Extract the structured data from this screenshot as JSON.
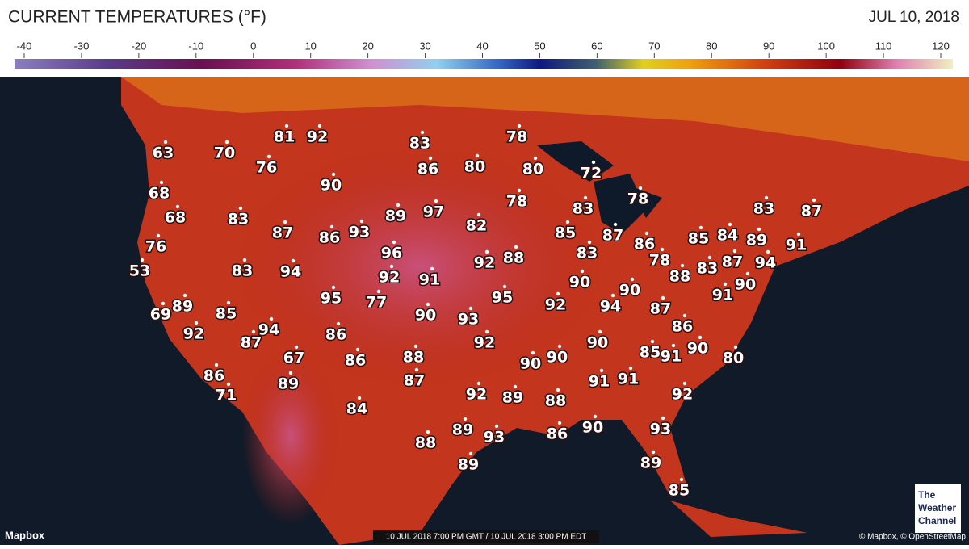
{
  "header": {
    "title": "CURRENT TEMPERATURES (°F)",
    "date": "JUL 10, 2018"
  },
  "legend": {
    "ticks": [
      -40,
      -30,
      -20,
      -10,
      0,
      10,
      20,
      30,
      40,
      50,
      60,
      70,
      80,
      90,
      100,
      110,
      120
    ]
  },
  "temperatures": [
    63,
    70,
    81,
    92,
    76,
    83,
    78,
    86,
    80,
    80,
    72,
    90,
    68,
    68,
    83,
    89,
    97,
    78,
    78,
    83,
    82,
    87,
    86,
    93,
    85,
    87,
    86,
    85,
    84,
    83,
    87,
    89,
    91,
    76,
    53,
    83,
    94,
    96,
    92,
    88,
    83,
    78,
    83,
    87,
    94,
    88,
    92,
    91,
    90,
    90,
    91,
    90,
    95,
    77,
    95,
    92,
    94,
    87,
    69,
    89,
    85,
    90,
    93,
    86,
    92,
    94,
    87,
    86,
    92,
    90,
    85,
    91,
    90,
    80,
    67,
    86,
    88,
    90,
    90,
    89,
    87,
    91,
    91,
    86,
    71,
    92,
    89,
    88,
    92,
    84,
    89,
    93,
    86,
    90,
    93,
    88,
    89,
    89,
    85
  ],
  "footer": {
    "attribution_left": "Mapbox",
    "timestamp": "10 JUL 2018 7:00 PM GMT / 10 JUL 2018 3:00 PM EDT",
    "attribution_right": "© Mapbox, © OpenStreetMap"
  },
  "logo": {
    "lines": [
      "The",
      "Weather",
      "Channel"
    ]
  }
}
